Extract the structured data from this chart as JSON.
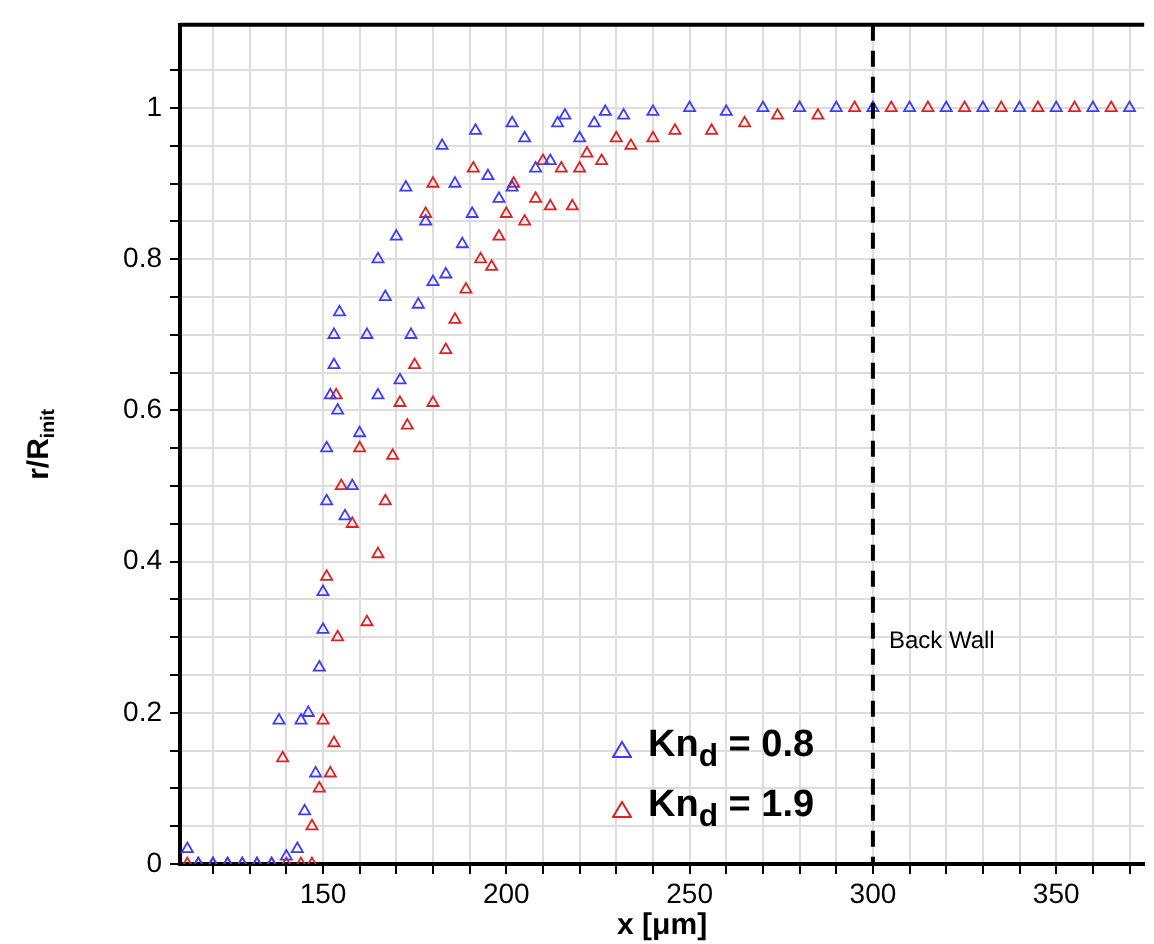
{
  "chart_data": {
    "type": "scatter",
    "xlabel": "x [μm]",
    "ylabel": "r/R$_{init}$",
    "xlim": [
      111,
      374
    ],
    "ylim": [
      0,
      1.11
    ],
    "xticks": [
      {
        "value": 120,
        "label": null
      },
      {
        "value": 130,
        "label": null
      },
      {
        "value": 140,
        "label": null
      },
      150,
      {
        "value": 160,
        "label": null
      },
      {
        "value": 170,
        "label": null
      },
      {
        "value": 180,
        "label": null
      },
      {
        "value": 190,
        "label": null
      },
      200,
      {
        "value": 210,
        "label": null
      },
      {
        "value": 220,
        "label": null
      },
      {
        "value": 230,
        "label": null
      },
      {
        "value": 240,
        "label": null
      },
      250,
      {
        "value": 260,
        "label": null
      },
      {
        "value": 270,
        "label": null
      },
      {
        "value": 280,
        "label": null
      },
      {
        "value": 290,
        "label": null
      },
      300,
      {
        "value": 310,
        "label": null
      },
      {
        "value": 320,
        "label": null
      },
      {
        "value": 330,
        "label": null
      },
      {
        "value": 340,
        "label": null
      },
      350,
      {
        "value": 360,
        "label": null
      },
      {
        "value": 370,
        "label": null
      }
    ],
    "yticks": [
      0,
      {
        "value": 0.05,
        "label": null
      },
      {
        "value": 0.1,
        "label": null
      },
      {
        "value": 0.15,
        "label": null
      },
      0.2,
      {
        "value": 0.25,
        "label": null
      },
      {
        "value": 0.3,
        "label": null
      },
      {
        "value": 0.35,
        "label": null
      },
      0.4,
      {
        "value": 0.45,
        "label": null
      },
      {
        "value": 0.5,
        "label": null
      },
      {
        "value": 0.55,
        "label": null
      },
      0.6,
      {
        "value": 0.65,
        "label": null
      },
      {
        "value": 0.7,
        "label": null
      },
      {
        "value": 0.75,
        "label": null
      },
      0.8,
      {
        "value": 0.85,
        "label": null
      },
      {
        "value": 0.9,
        "label": null
      },
      {
        "value": 0.95,
        "label": null
      },
      1,
      {
        "value": 1.05,
        "label": null
      }
    ],
    "grid": true,
    "marker": "triangle",
    "legend": "bottom",
    "ref_lines": [
      {
        "axis": "x",
        "value": 300,
        "label": "Back Wall",
        "color": "#000000",
        "line_style": "dashed"
      }
    ],
    "series": [
      {
        "name": "Kn$_{d}$ = 0.8",
        "color": "#3c3cff",
        "x": [
          113,
          116,
          120,
          124,
          128,
          132,
          136,
          140,
          143,
          138,
          144,
          146,
          145,
          148,
          149,
          150,
          150,
          151,
          151,
          152,
          153,
          153,
          154,
          154.5,
          156,
          158,
          160,
          162,
          165,
          165,
          167,
          170,
          171,
          172.6,
          174,
          176,
          178,
          180,
          182.5,
          183.5,
          186,
          188,
          190.7,
          191.6,
          195,
          198,
          201.6,
          201.6,
          205,
          208,
          212,
          214,
          216,
          220,
          224,
          227,
          232,
          240,
          250,
          260,
          270,
          280,
          290,
          300,
          310,
          320,
          330,
          340,
          350,
          360,
          370
        ],
        "values": [
          0.02,
          0,
          0,
          0,
          0,
          0,
          0,
          0.01,
          0.02,
          0.19,
          0.19,
          0.2,
          0.07,
          0.12,
          0.26,
          0.31,
          0.36,
          0.48,
          0.55,
          0.62,
          0.66,
          0.7,
          0.6,
          0.73,
          0.46,
          0.5,
          0.57,
          0.7,
          0.8,
          0.62,
          0.75,
          0.83,
          0.64,
          0.895,
          0.7,
          0.74,
          0.85,
          0.77,
          0.95,
          0.78,
          0.9,
          0.82,
          0.86,
          0.97,
          0.91,
          0.88,
          0.98,
          0.895,
          0.96,
          0.92,
          0.93,
          0.98,
          0.99,
          0.96,
          0.98,
          0.995,
          0.99,
          0.995,
          1,
          0.995,
          1,
          1,
          1,
          1,
          1,
          1,
          1,
          1,
          1,
          1,
          1
        ]
      },
      {
        "name": "Kn$_{d}$ = 1.9",
        "color": "#e02020",
        "x": [
          113,
          116,
          120,
          124,
          128,
          132,
          136,
          140,
          144,
          147,
          139,
          147,
          149,
          150,
          152,
          153,
          154,
          151,
          153.6,
          155,
          158,
          160,
          162,
          165,
          167,
          169,
          171,
          173,
          175,
          178,
          180,
          180,
          183.5,
          186,
          189,
          191,
          193,
          196,
          198,
          200,
          202,
          205,
          208,
          210,
          212,
          215,
          218,
          220,
          222,
          226,
          230,
          234,
          240,
          246,
          256,
          265,
          274,
          285,
          295,
          305,
          315,
          325,
          335,
          345,
          355,
          365
        ],
        "values": [
          0,
          0,
          0,
          0,
          0,
          0,
          0,
          0,
          0,
          0,
          0.14,
          0.05,
          0.1,
          0.19,
          0.12,
          0.16,
          0.3,
          0.38,
          0.62,
          0.5,
          0.45,
          0.55,
          0.32,
          0.41,
          0.48,
          0.54,
          0.61,
          0.58,
          0.66,
          0.86,
          0.61,
          0.9,
          0.68,
          0.72,
          0.76,
          0.92,
          0.8,
          0.79,
          0.83,
          0.86,
          0.9,
          0.85,
          0.88,
          0.93,
          0.87,
          0.92,
          0.87,
          0.92,
          0.94,
          0.93,
          0.96,
          0.95,
          0.96,
          0.97,
          0.97,
          0.98,
          0.99,
          0.99,
          1,
          1,
          1,
          1,
          1,
          1,
          1,
          1
        ]
      }
    ]
  }
}
